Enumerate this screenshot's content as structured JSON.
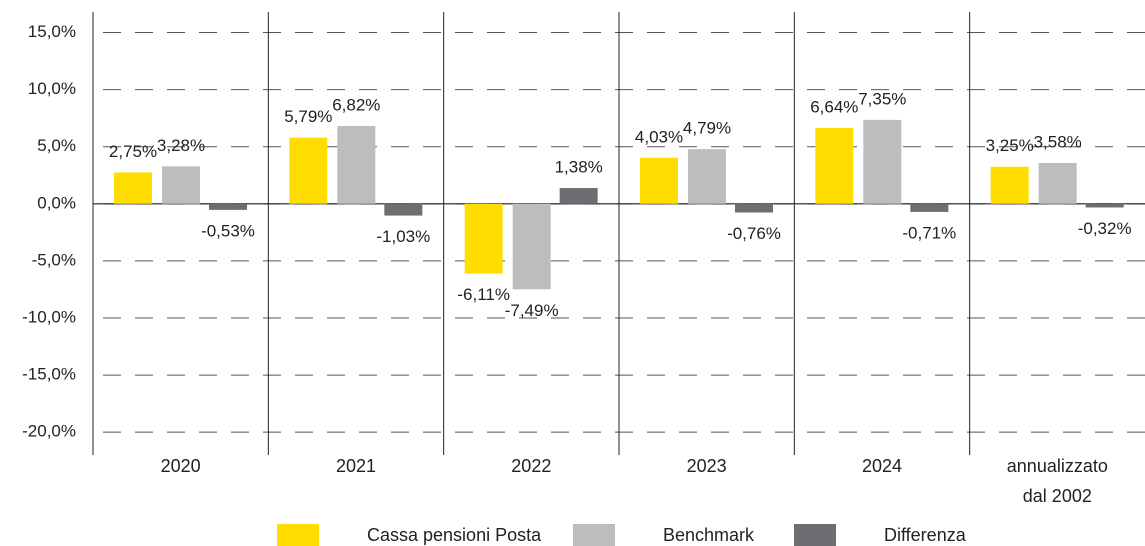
{
  "chart_data": {
    "type": "bar",
    "categories": [
      "2020",
      "2021",
      "2022",
      "2023",
      "2024",
      "annualizzato dal 2002"
    ],
    "series": [
      {
        "name": "Cassa pensioni Posta",
        "color": "#FFDD00",
        "values": [
          2.75,
          5.79,
          -6.11,
          4.03,
          6.64,
          3.25
        ],
        "value_labels": [
          "2,75%",
          "5,79%",
          "-6,11%",
          "4,03%",
          "6,64%",
          "3,25%"
        ]
      },
      {
        "name": "Benchmark",
        "color": "#BDBDBF",
        "values": [
          3.28,
          6.82,
          -7.49,
          4.79,
          7.35,
          3.58
        ],
        "value_labels": [
          "3,28%",
          "6,82%",
          "-7,49%",
          "4,79%",
          "7,35%",
          "3,58%"
        ]
      },
      {
        "name": "Differenza",
        "color": "#6D6E71",
        "values": [
          -0.53,
          -1.03,
          1.38,
          -0.76,
          -0.71,
          -0.32
        ],
        "value_labels": [
          "-0,53%",
          "-1,03%",
          "1,38%",
          "-0,76%",
          "-0,71%",
          "-0,32%"
        ]
      }
    ],
    "ylim": [
      -22,
      16.8
    ],
    "yticks": [
      {
        "value": 15,
        "label": "15,0%"
      },
      {
        "value": 10,
        "label": "10,0%"
      },
      {
        "value": 5,
        "label": "5,0%"
      },
      {
        "value": 0,
        "label": "0,0%"
      },
      {
        "value": -5,
        "label": "-5,0%"
      },
      {
        "value": -10,
        "label": "-10,0%"
      },
      {
        "value": -15,
        "label": "-15,0%"
      },
      {
        "value": -20,
        "label": "-20,0%"
      }
    ],
    "grid": true,
    "legend": "bottom"
  }
}
